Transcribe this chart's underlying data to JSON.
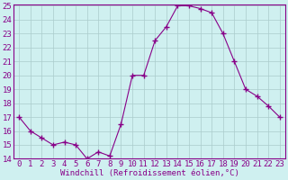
{
  "x": [
    0,
    1,
    2,
    3,
    4,
    5,
    6,
    7,
    8,
    9,
    10,
    11,
    12,
    13,
    14,
    15,
    16,
    17,
    18,
    19,
    20,
    21,
    22,
    23
  ],
  "y": [
    17.0,
    16.0,
    15.5,
    15.0,
    15.2,
    15.0,
    14.0,
    14.5,
    14.2,
    16.5,
    20.0,
    20.0,
    22.5,
    23.5,
    25.0,
    25.0,
    24.8,
    24.5,
    23.0,
    21.0,
    19.0,
    18.5,
    17.8,
    17.0
  ],
  "xlabel": "Windchill (Refroidissement éolien,°C)",
  "ylim": [
    14,
    25
  ],
  "xlim": [
    -0.5,
    23.5
  ],
  "yticks": [
    14,
    15,
    16,
    17,
    18,
    19,
    20,
    21,
    22,
    23,
    24,
    25
  ],
  "xticks": [
    0,
    1,
    2,
    3,
    4,
    5,
    6,
    7,
    8,
    9,
    10,
    11,
    12,
    13,
    14,
    15,
    16,
    17,
    18,
    19,
    20,
    21,
    22,
    23
  ],
  "line_color": "#880088",
  "marker": "+",
  "marker_size": 4.0,
  "bg_color": "#cff0f0",
  "grid_color": "#aacccc",
  "tick_label_color": "#880088",
  "xlabel_color": "#880088",
  "xlabel_fontsize": 6.5,
  "tick_fontsize": 6.5
}
